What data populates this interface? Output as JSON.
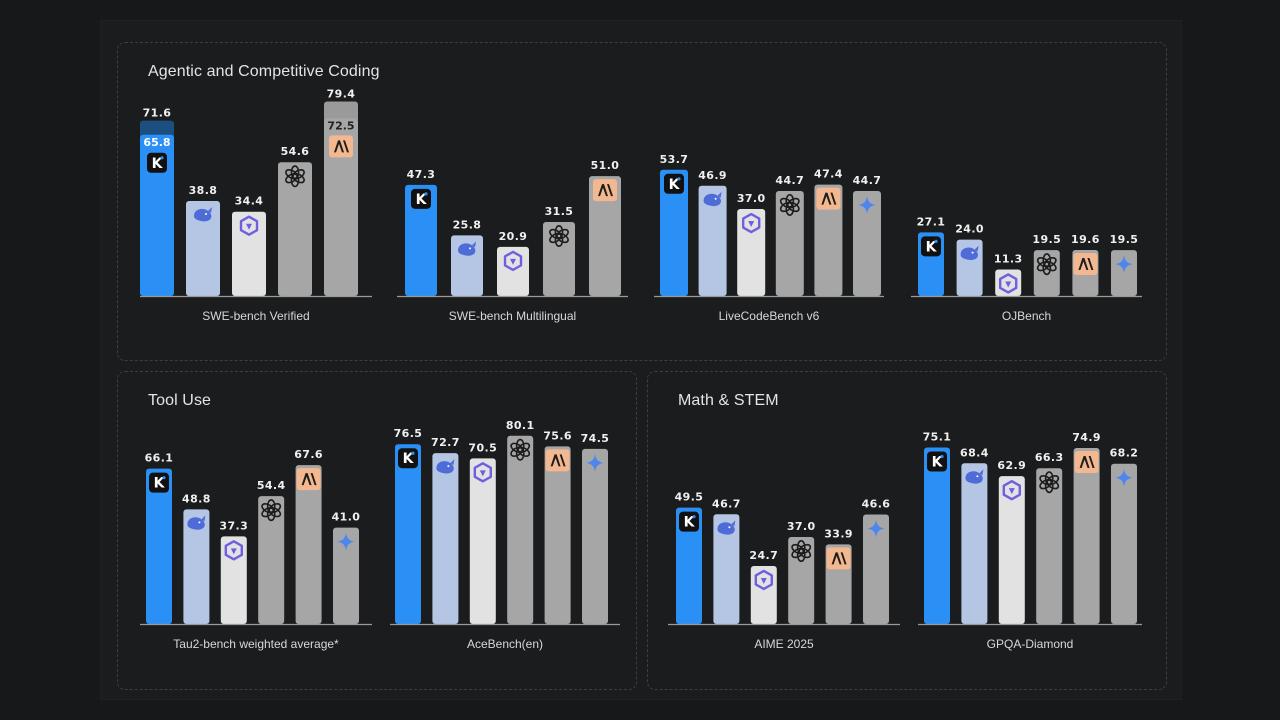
{
  "colors": {
    "kimi": "#2b90f5",
    "deepseek": "#b4c6e4",
    "qwen": "#e2e2e2",
    "openai": "#a6a6a6",
    "anthropic": "#a6a6a6",
    "gemini": "#a6a6a6",
    "kimi_upper": "#1c4f80",
    "anthropic_upper": "#9a9a9a",
    "logo_bg_anthropic": "#f3b88f",
    "logo_bg_dark": "#111111"
  },
  "panels": {
    "coding": {
      "title": "Agentic and Competitive Coding"
    },
    "tool": {
      "title": "Tool Use"
    },
    "math": {
      "title": "Math & STEM"
    }
  },
  "chart_data": [
    {
      "type": "bar",
      "panel": "coding",
      "title": "SWE-bench Verified",
      "categories": [
        "kimi",
        "deepseek",
        "qwen",
        "openai",
        "anthropic"
      ],
      "values": [
        65.8,
        38.8,
        34.4,
        54.6,
        72.5
      ],
      "upper_values": [
        71.6,
        null,
        null,
        null,
        79.4
      ],
      "labels": [
        "65.8",
        "38.8",
        "34.4",
        "54.6",
        "72.5"
      ],
      "upper_labels": [
        "71.6",
        "",
        "",
        "",
        "79.4"
      ],
      "ylim": [
        0,
        80
      ]
    },
    {
      "type": "bar",
      "panel": "coding",
      "title": "SWE-bench Multilingual",
      "categories": [
        "kimi",
        "deepseek",
        "qwen",
        "openai",
        "anthropic"
      ],
      "values": [
        47.3,
        25.8,
        20.9,
        31.5,
        51.0
      ],
      "labels": [
        "47.3",
        "25.8",
        "20.9",
        "31.5",
        "51.0"
      ],
      "ylim": [
        0,
        80
      ]
    },
    {
      "type": "bar",
      "panel": "coding",
      "title": "LiveCodeBench v6",
      "categories": [
        "kimi",
        "deepseek",
        "qwen",
        "openai",
        "anthropic",
        "gemini"
      ],
      "values": [
        53.7,
        46.9,
        37.0,
        44.7,
        47.4,
        44.7
      ],
      "labels": [
        "53.7",
        "46.9",
        "37.0",
        "44.7",
        "47.4",
        "44.7"
      ],
      "ylim": [
        0,
        80
      ]
    },
    {
      "type": "bar",
      "panel": "coding",
      "title": "OJBench",
      "categories": [
        "kimi",
        "deepseek",
        "qwen",
        "openai",
        "anthropic",
        "gemini"
      ],
      "values": [
        27.1,
        24.0,
        11.3,
        19.5,
        19.6,
        19.5
      ],
      "labels": [
        "27.1",
        "24.0",
        "11.3",
        "19.5",
        "19.6",
        "19.5"
      ],
      "ylim": [
        0,
        80
      ]
    },
    {
      "type": "bar",
      "panel": "tool",
      "title": "Tau2-bench weighted average*",
      "categories": [
        "kimi",
        "deepseek",
        "qwen",
        "openai",
        "anthropic",
        "gemini"
      ],
      "values": [
        66.1,
        48.8,
        37.3,
        54.4,
        67.6,
        41.0
      ],
      "labels": [
        "66.1",
        "48.8",
        "37.3",
        "54.4",
        "67.6",
        "41.0"
      ],
      "ylim": [
        0,
        100
      ]
    },
    {
      "type": "bar",
      "panel": "tool",
      "title": "AceBench(en)",
      "categories": [
        "kimi",
        "deepseek",
        "qwen",
        "openai",
        "anthropic",
        "gemini"
      ],
      "values": [
        76.5,
        72.7,
        70.5,
        80.1,
        75.6,
        74.5
      ],
      "labels": [
        "76.5",
        "72.7",
        "70.5",
        "80.1",
        "75.6",
        "74.5"
      ],
      "ylim": [
        0,
        100
      ]
    },
    {
      "type": "bar",
      "panel": "math",
      "title": "AIME 2025",
      "categories": [
        "kimi",
        "deepseek",
        "qwen",
        "openai",
        "anthropic",
        "gemini"
      ],
      "values": [
        49.5,
        46.7,
        24.7,
        37.0,
        33.9,
        46.6
      ],
      "labels": [
        "49.5",
        "46.7",
        "24.7",
        "37.0",
        "33.9",
        "46.6"
      ],
      "ylim": [
        0,
        100
      ]
    },
    {
      "type": "bar",
      "panel": "math",
      "title": "GPQA-Diamond",
      "categories": [
        "kimi",
        "deepseek",
        "qwen",
        "openai",
        "anthropic",
        "gemini"
      ],
      "values": [
        75.1,
        68.4,
        62.9,
        66.3,
        74.9,
        68.2
      ],
      "labels": [
        "75.1",
        "68.4",
        "62.9",
        "66.3",
        "74.9",
        "68.2"
      ],
      "ylim": [
        0,
        100
      ]
    }
  ],
  "icons": {
    "kimi": "kimi-logo-icon",
    "deepseek": "deepseek-whale-icon",
    "qwen": "qwen-logo-icon",
    "openai": "openai-logo-icon",
    "anthropic": "anthropic-logo-icon",
    "gemini": "gemini-sparkle-icon"
  }
}
